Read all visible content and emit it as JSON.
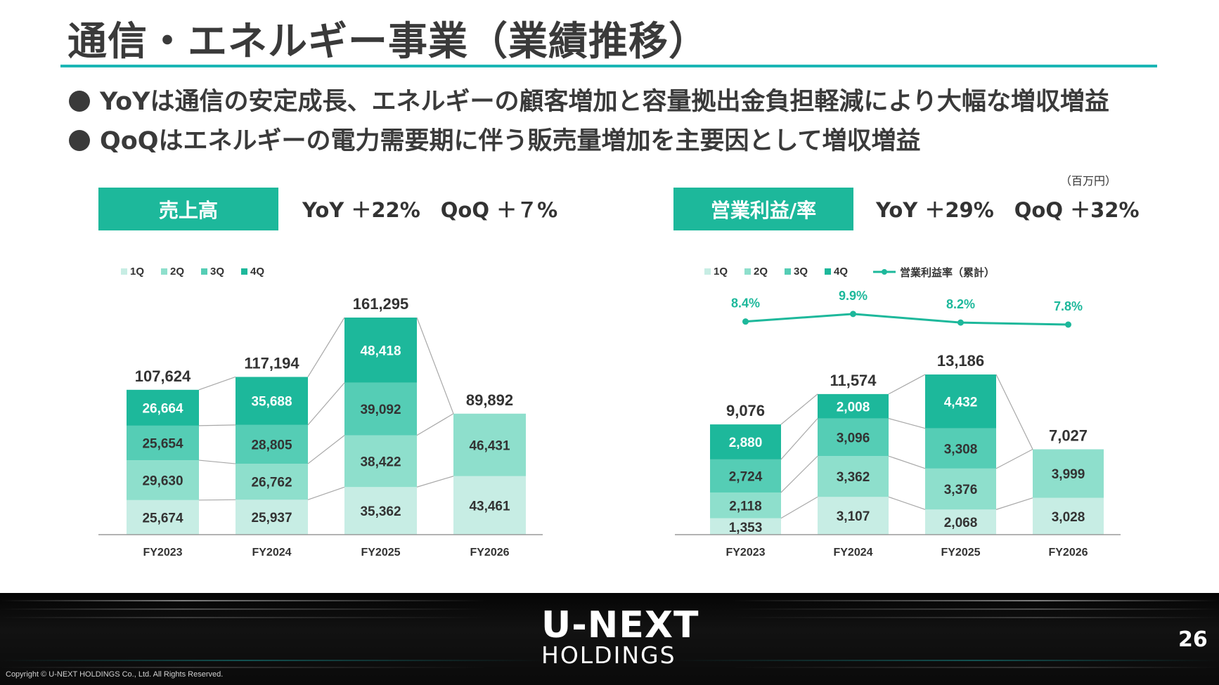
{
  "title": "通信・エネルギー事業（業績推移）",
  "bullets": [
    "YoYは通信の安定成長、エネルギーの顧客増加と容量拠出金負担軽減により大幅な増収増益",
    "QoQはエネルギーの電力需要期に伴う販売量増加を主要因として増収増益"
  ],
  "unit_label": "（百万円）",
  "sales": {
    "tag": "売上高",
    "growth": "YoY ＋22%　QoQ ＋７%"
  },
  "op": {
    "tag": "営業利益/率",
    "growth": "YoY ＋29%　QoQ ＋32%"
  },
  "colors": {
    "accent": "#1bb6b5",
    "q1": "#c7ede4",
    "q2": "#8edfcc",
    "q3": "#55cdb5",
    "q4": "#1db89b",
    "line": "#1db89b"
  },
  "page_number": "26",
  "logo_top": "U-NEXT",
  "logo_bottom": "HOLDINGS",
  "copyright": "Copyright © U-NEXT HOLDINGS Co., Ltd. All Rights Reserved.",
  "chart_data": [
    {
      "type": "bar",
      "stacked": true,
      "categories": [
        "FY2023",
        "FY2024",
        "FY2025",
        "FY2026"
      ],
      "series": [
        {
          "name": "1Q",
          "values": [
            25674,
            25937,
            35362,
            43461
          ]
        },
        {
          "name": "2Q",
          "values": [
            29630,
            26762,
            38422,
            46431
          ]
        },
        {
          "name": "3Q",
          "values": [
            25654,
            28805,
            39092,
            null
          ]
        },
        {
          "name": "4Q",
          "values": [
            26664,
            35688,
            48418,
            null
          ]
        }
      ],
      "totals": [
        107624,
        117194,
        161295,
        89892
      ],
      "legend_placement": "top-left",
      "ylim": [
        0,
        161295
      ]
    },
    {
      "type": "bar",
      "stacked": true,
      "categories": [
        "FY2023",
        "FY2024",
        "FY2025",
        "FY2026"
      ],
      "series": [
        {
          "name": "1Q",
          "values": [
            1353,
            3107,
            2068,
            3028
          ]
        },
        {
          "name": "2Q",
          "values": [
            2118,
            3362,
            3376,
            3999
          ]
        },
        {
          "name": "3Q",
          "values": [
            2724,
            3096,
            3308,
            null
          ]
        },
        {
          "name": "4Q",
          "values": [
            2880,
            2008,
            4432,
            null
          ]
        }
      ],
      "totals": [
        9076,
        11574,
        13186,
        7027
      ],
      "line_series": {
        "name": "営業利益率（累計）",
        "values": [
          8.4,
          9.9,
          8.2,
          7.8
        ],
        "unit": "%"
      },
      "legend_placement": "top-left",
      "ylim": [
        0,
        13186
      ]
    }
  ]
}
